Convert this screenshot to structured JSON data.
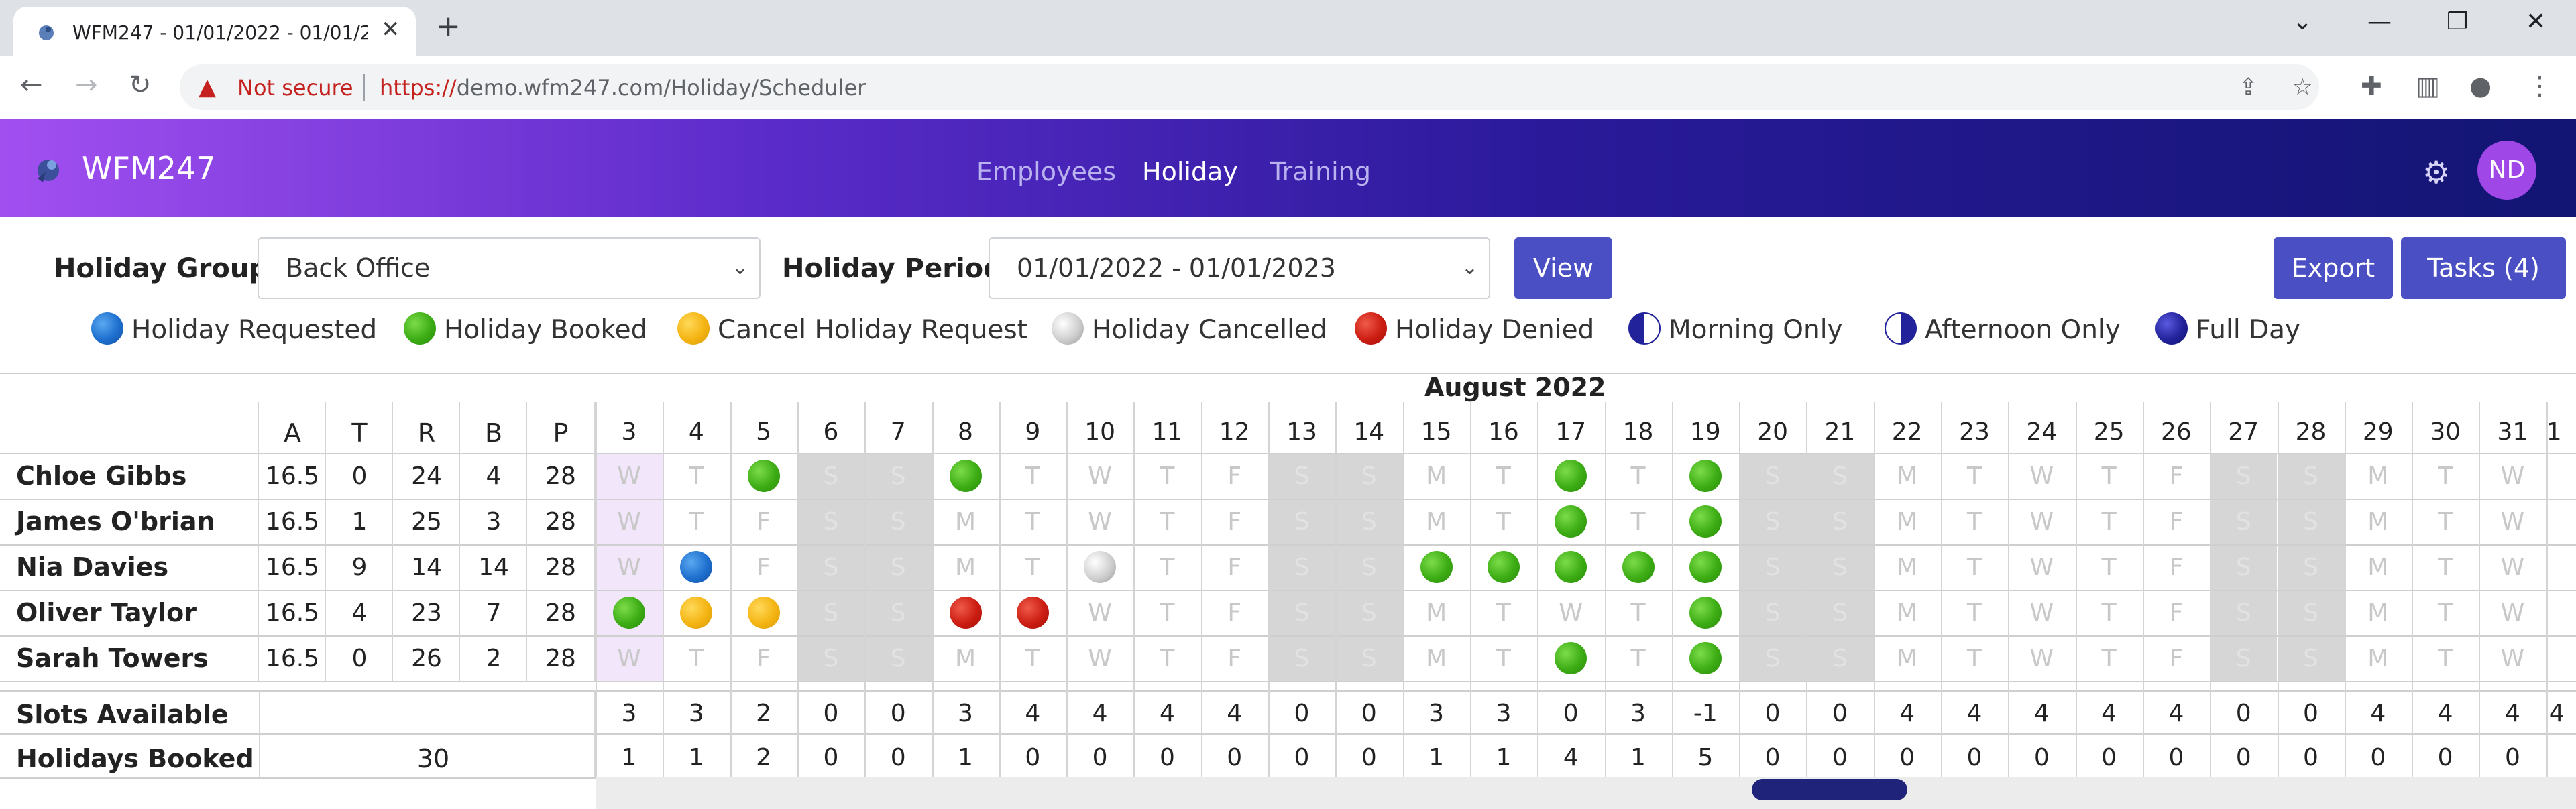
{
  "browser": {
    "tab_title": "WFM247 - 01/01/2022 - 01/01/2",
    "not_secure": "Not secure",
    "url_scheme": "https://",
    "url_rest": "demo.wfm247.com/Holiday/Scheduler"
  },
  "app": {
    "brand": "WFM247",
    "nav": [
      "Employees",
      "Holiday",
      "Training"
    ],
    "active_nav": "Holiday",
    "avatar": "ND"
  },
  "toolbar": {
    "group_label": "Holiday Group",
    "group_value": "Back Office",
    "period_label": "Holiday Period",
    "period_value": "01/01/2022 - 01/01/2023",
    "view_label": "View",
    "export_label": "Export",
    "tasks_label": "Tasks (4)"
  },
  "legend": [
    {
      "label": "Holiday Requested",
      "style": "blue"
    },
    {
      "label": "Holiday Booked",
      "style": "green"
    },
    {
      "label": "Cancel Holiday Request",
      "style": "yellow"
    },
    {
      "label": "Holiday Cancelled",
      "style": "grey"
    },
    {
      "label": "Holiday Denied",
      "style": "red"
    },
    {
      "label": "Morning Only",
      "style": "half-left"
    },
    {
      "label": "Afternoon Only",
      "style": "half-right"
    },
    {
      "label": "Full Day",
      "style": "navy"
    }
  ],
  "grid": {
    "month": "August 2022",
    "summary_headers": [
      "A",
      "T",
      "R",
      "B",
      "P"
    ],
    "days": [
      3,
      4,
      5,
      6,
      7,
      8,
      9,
      10,
      11,
      12,
      13,
      14,
      15,
      16,
      17,
      18,
      19,
      20,
      21,
      22,
      23,
      24,
      25,
      26,
      27,
      28,
      29,
      30,
      31
    ],
    "day_letters": [
      "W",
      "T",
      "F",
      "S",
      "S",
      "M",
      "T",
      "W",
      "T",
      "F",
      "S",
      "S",
      "M",
      "T",
      "W",
      "T",
      "F",
      "S",
      "S",
      "M",
      "T",
      "W",
      "T",
      "F",
      "S",
      "S",
      "M",
      "T",
      "W"
    ],
    "weekend_index": [
      3,
      4,
      10,
      11,
      17,
      18,
      24,
      25
    ],
    "employees": [
      {
        "name": "Chloe Gibbs",
        "A": "16.5",
        "T": "0",
        "R": "24",
        "B": "4",
        "P": "28",
        "marks": {
          "2": "green",
          "5": "green",
          "14": "green",
          "16": "green"
        }
      },
      {
        "name": "James O'brian",
        "A": "16.5",
        "T": "1",
        "R": "25",
        "B": "3",
        "P": "28",
        "marks": {
          "14": "green",
          "16": "green"
        }
      },
      {
        "name": "Nia Davies",
        "A": "16.5",
        "T": "9",
        "R": "14",
        "B": "14",
        "P": "28",
        "marks": {
          "1": "blue",
          "7": "grey",
          "12": "green",
          "13": "green",
          "14": "green",
          "15": "green",
          "16": "green"
        }
      },
      {
        "name": "Oliver Taylor",
        "A": "16.5",
        "T": "4",
        "R": "23",
        "B": "7",
        "P": "28",
        "marks": {
          "0": "green",
          "1": "yellow",
          "2": "yellow",
          "5": "red",
          "6": "red",
          "16": "green"
        }
      },
      {
        "name": "Sarah Towers",
        "A": "16.5",
        "T": "0",
        "R": "26",
        "B": "2",
        "P": "28",
        "marks": {
          "14": "green",
          "16": "green"
        }
      }
    ],
    "slots_label": "Slots Available",
    "slots": [
      "3",
      "3",
      "2",
      "0",
      "0",
      "3",
      "4",
      "4",
      "4",
      "4",
      "0",
      "0",
      "3",
      "3",
      "0",
      "3",
      "-1",
      "0",
      "0",
      "4",
      "4",
      "4",
      "4",
      "4",
      "0",
      "0",
      "4",
      "4",
      "4"
    ],
    "booked_label": "Holidays Booked",
    "booked_total": "30",
    "booked": [
      "1",
      "1",
      "2",
      "0",
      "0",
      "1",
      "0",
      "0",
      "0",
      "0",
      "0",
      "0",
      "1",
      "1",
      "4",
      "1",
      "5",
      "0",
      "0",
      "0",
      "0",
      "0",
      "0",
      "0",
      "0",
      "0",
      "0",
      "0",
      "0"
    ],
    "next_col_day": "1",
    "next_col_slot": "4"
  }
}
